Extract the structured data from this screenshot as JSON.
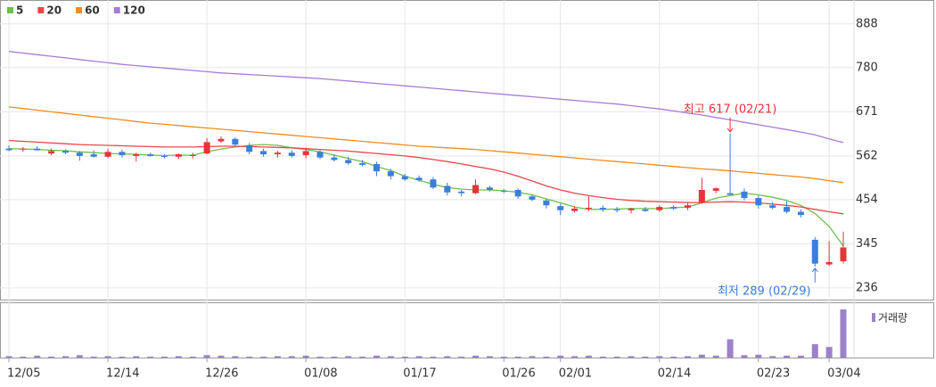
{
  "chart_data": {
    "type": "candlestick",
    "categories": [
      "12/05",
      null,
      null,
      null,
      null,
      null,
      null,
      "12/14",
      null,
      null,
      null,
      null,
      null,
      null,
      "12/26",
      null,
      null,
      null,
      null,
      null,
      null,
      "01/08",
      null,
      null,
      null,
      null,
      null,
      null,
      "01/17",
      null,
      null,
      null,
      null,
      null,
      null,
      "01/26",
      null,
      null,
      null,
      "02/01",
      null,
      null,
      null,
      null,
      null,
      null,
      "02/14",
      null,
      null,
      null,
      null,
      null,
      null,
      "02/23",
      null,
      null,
      null,
      null,
      "03/04",
      null
    ],
    "open": [
      580,
      578,
      580,
      568,
      574,
      570,
      566,
      560,
      572,
      562,
      566,
      562,
      560,
      562,
      568,
      598,
      604,
      588,
      574,
      566,
      570,
      564,
      572,
      558,
      552,
      544,
      542,
      524,
      512,
      508,
      504,
      488,
      474,
      470,
      484,
      476,
      478,
      462,
      452,
      438,
      426,
      432,
      434,
      430,
      428,
      430,
      428,
      436,
      434,
      448,
      476,
      470,
      474,
      458,
      440,
      436,
      424,
      355,
      294,
      302
    ],
    "high": [
      588,
      584,
      586,
      580,
      578,
      574,
      576,
      580,
      578,
      570,
      570,
      566,
      568,
      570,
      606,
      610,
      608,
      594,
      580,
      574,
      576,
      582,
      576,
      566,
      560,
      552,
      548,
      530,
      518,
      514,
      510,
      496,
      478,
      504,
      488,
      480,
      482,
      466,
      456,
      444,
      438,
      462,
      440,
      436,
      434,
      436,
      440,
      440,
      446,
      508,
      484,
      617,
      482,
      464,
      448,
      450,
      430,
      362,
      352,
      375
    ],
    "low": [
      574,
      572,
      575,
      564,
      566,
      550,
      558,
      556,
      558,
      548,
      560,
      556,
      554,
      556,
      566,
      594,
      586,
      566,
      560,
      558,
      558,
      556,
      554,
      548,
      540,
      536,
      512,
      504,
      500,
      498,
      480,
      464,
      462,
      468,
      474,
      470,
      456,
      450,
      432,
      416,
      422,
      426,
      424,
      422,
      420,
      424,
      424,
      428,
      428,
      444,
      470,
      468,
      452,
      432,
      430,
      420,
      410,
      289,
      290,
      296
    ],
    "close": [
      576,
      580,
      576,
      574,
      570,
      562,
      560,
      572,
      564,
      566,
      562,
      560,
      566,
      564,
      596,
      604,
      590,
      572,
      566,
      570,
      562,
      574,
      558,
      552,
      544,
      540,
      524,
      512,
      504,
      502,
      484,
      472,
      470,
      490,
      478,
      474,
      462,
      454,
      440,
      428,
      432,
      434,
      430,
      428,
      432,
      426,
      436,
      432,
      440,
      478,
      482,
      466,
      458,
      440,
      434,
      424,
      416,
      296,
      300,
      336
    ],
    "up_color": "#e8333a",
    "down_color": "#3a7fd9",
    "moving_averages": [
      {
        "name": "5",
        "color": "#6cc04a",
        "values": [
          580,
          579,
          578,
          576,
          575,
          572,
          570,
          568,
          567,
          566,
          564,
          563,
          564,
          564,
          572,
          579,
          584,
          588,
          590,
          588,
          582,
          578,
          572,
          564,
          556,
          548,
          536,
          526,
          512,
          502,
          492,
          484,
          480,
          478,
          478,
          476,
          472,
          466,
          456,
          446,
          436,
          430,
          430,
          431,
          432,
          432,
          432,
          434,
          436,
          446,
          458,
          464,
          470,
          466,
          460,
          452,
          440,
          420,
          388,
          340
        ]
      },
      {
        "name": "20",
        "color": "#e8474c",
        "values": [
          600,
          598,
          596,
          594,
          592,
          590,
          589,
          588,
          587,
          586,
          585,
          584,
          584,
          584,
          585,
          586,
          586,
          585,
          584,
          583,
          582,
          580,
          578,
          576,
          574,
          571,
          568,
          565,
          562,
          558,
          553,
          548,
          542,
          536,
          530,
          522,
          512,
          500,
          488,
          478,
          470,
          464,
          459,
          455,
          452,
          450,
          449,
          448,
          447,
          447,
          448,
          449,
          448,
          446,
          443,
          440,
          436,
          430,
          424,
          419
        ]
      },
      {
        "name": "60",
        "color": "#f58a1f",
        "values": [
          683,
          679,
          675,
          671,
          667,
          663,
          659,
          655,
          651,
          647,
          643,
          640,
          637,
          634,
          631,
          628,
          625,
          622,
          619,
          616,
          613,
          610,
          607,
          604,
          601,
          598,
          595,
          592,
          589,
          586,
          584,
          582,
          580,
          578,
          575,
          572,
          569,
          566,
          563,
          560,
          557,
          554,
          551,
          548,
          545,
          542,
          539,
          536,
          533,
          530,
          528,
          525,
          522,
          519,
          516,
          513,
          510,
          506,
          501,
          496
        ]
      },
      {
        "name": "120",
        "color": "#a77bd8",
        "values": [
          820,
          816,
          812,
          808,
          804,
          800,
          796,
          792,
          788,
          785,
          782,
          779,
          776,
          773,
          770,
          767,
          765,
          763,
          761,
          759,
          757,
          755,
          753,
          750,
          747,
          744,
          741,
          738,
          735,
          732,
          729,
          726,
          723,
          720,
          717,
          714,
          711,
          708,
          705,
          702,
          699,
          696,
          693,
          690,
          686,
          682,
          678,
          673,
          668,
          663,
          657,
          651,
          645,
          639,
          633,
          627,
          621,
          614,
          604,
          595
        ]
      }
    ],
    "volume": {
      "name": "거래량",
      "color": "#9b82c9",
      "values": [
        3,
        2,
        4,
        2,
        3,
        5,
        2,
        3,
        2,
        3,
        2,
        2,
        3,
        2,
        5,
        4,
        3,
        2,
        2,
        3,
        3,
        4,
        2,
        2,
        3,
        2,
        4,
        3,
        2,
        3,
        2,
        3,
        2,
        4,
        3,
        2,
        2,
        3,
        2,
        4,
        3,
        4,
        2,
        2,
        3,
        2,
        3,
        2,
        3,
        6,
        4,
        38,
        5,
        6,
        3,
        4,
        4,
        28,
        22,
        100
      ]
    },
    "annotations": {
      "high": "최고 617 (02/21)",
      "low": "최저 289 (02/29)"
    },
    "ylim": [
      205,
      947
    ],
    "yticks": [
      236,
      345,
      454,
      562,
      671,
      780,
      888
    ],
    "grid": true
  }
}
